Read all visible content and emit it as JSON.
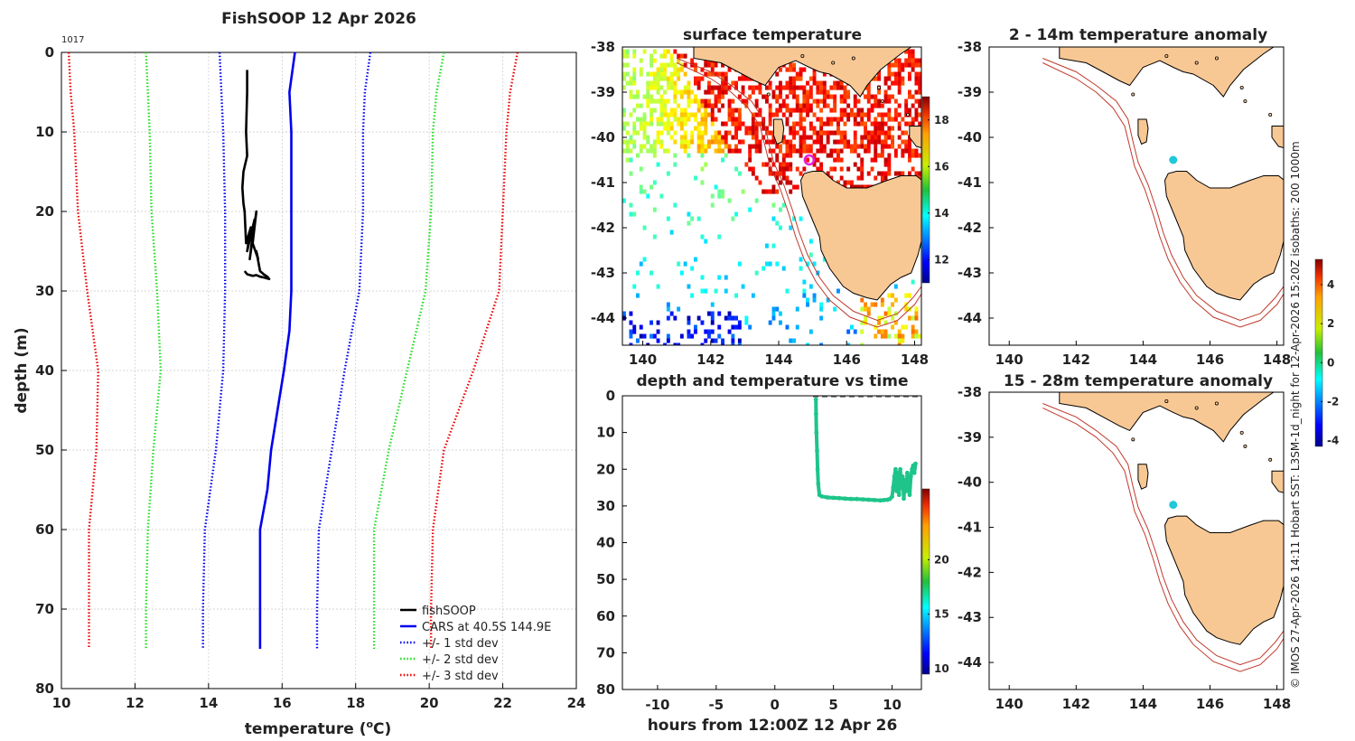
{
  "page": {
    "side_note": "© IMOS 27-Apr-2026 14:11 Hobart SST: L3SM-1d_night for 12-Apr-2026 15:20Z isobaths: 200  1000m"
  },
  "colors": {
    "fishsoop": "#000000",
    "cars": "#0000ee",
    "std1": "#0000ee",
    "std2": "#22dd22",
    "std3": "#ee0000",
    "land": "#f8c894",
    "isobath": "#c0392b",
    "track_green": "#1ec48a",
    "magenta": "#e020e0",
    "cyan": "#20c8d8"
  },
  "chart_data": [
    {
      "id": "profile",
      "type": "line",
      "title": "FishSOOP 12 Apr 2026",
      "corner_label": "1017",
      "xlabel": "temperature (",
      "xlabel_sup": "o",
      "xlabel_tail": "C)",
      "ylabel": "depth (m)",
      "xlim": [
        10,
        24
      ],
      "ylim": [
        80,
        0
      ],
      "xticks": [
        "10",
        "12",
        "14",
        "16",
        "18",
        "20",
        "22",
        "24"
      ],
      "yticks": [
        "0",
        "10",
        "20",
        "30",
        "40",
        "50",
        "60",
        "70",
        "80"
      ],
      "grid": true,
      "legend_position": "bottom-right",
      "series": [
        {
          "name": "fishSOOP",
          "style": "solid",
          "color": "#000000",
          "temps": [
            15.05,
            15.05,
            15.02,
            15.05,
            14.95,
            14.92,
            14.95,
            14.98,
            15.02,
            15.15,
            15.05,
            15.25,
            15.12,
            15.3,
            15.2,
            15.35,
            15.3,
            15.4,
            15.5,
            15.6,
            15.65,
            15.5,
            15.4,
            15.3,
            15.2,
            15.05,
            14.98
          ],
          "depths": [
            2.2,
            5,
            10,
            13,
            15,
            17,
            19,
            20,
            24,
            22,
            25,
            21,
            26,
            20,
            24,
            26,
            25,
            27.5,
            27.9,
            28.2,
            28.5,
            28.3,
            28.2,
            28.0,
            28.1,
            27.9,
            27.5
          ]
        },
        {
          "name": "CARS at 40.5S 144.9E",
          "style": "solid",
          "color": "#0000ee",
          "temps": [
            16.35,
            16.2,
            16.25,
            16.25,
            16.25,
            16.2,
            16.05,
            15.7,
            15.6,
            15.4,
            15.4
          ],
          "depths": [
            0,
            5,
            10,
            20,
            30,
            35,
            40,
            50,
            55,
            60,
            75
          ]
        },
        {
          "name": "+/- 1 std dev",
          "style": "dotted",
          "color": "#0000ee",
          "temps": [
            14.3,
            14.35,
            14.4,
            14.45,
            14.45,
            14.4,
            14.2,
            13.9,
            13.85,
            13.85
          ],
          "depths": [
            0,
            5,
            10,
            20,
            30,
            40,
            50,
            60,
            70,
            75
          ]
        },
        {
          "name": "",
          "style": "dotted",
          "color": "#0000ee",
          "temps": [
            18.4,
            18.25,
            18.2,
            18.2,
            18.1,
            17.7,
            17.35,
            17.0,
            16.95,
            16.95
          ],
          "depths": [
            0,
            5,
            10,
            20,
            30,
            40,
            50,
            60,
            70,
            75
          ]
        },
        {
          "name": "+/- 2 std dev",
          "style": "dotted",
          "color": "#22dd22",
          "temps": [
            12.3,
            12.35,
            12.4,
            12.45,
            12.6,
            12.7,
            12.5,
            12.35,
            12.3,
            12.3
          ],
          "depths": [
            0,
            5,
            10,
            20,
            30,
            40,
            50,
            60,
            70,
            75
          ]
        },
        {
          "name": "",
          "style": "dotted",
          "color": "#22dd22",
          "temps": [
            20.4,
            20.2,
            20.1,
            20.05,
            19.9,
            19.4,
            18.9,
            18.5,
            18.5,
            18.5
          ],
          "depths": [
            0,
            5,
            10,
            20,
            30,
            40,
            50,
            60,
            70,
            75
          ]
        },
        {
          "name": "+/- 3 std dev",
          "style": "dotted",
          "color": "#ee0000",
          "temps": [
            10.2,
            10.25,
            10.35,
            10.45,
            10.7,
            11.0,
            10.95,
            10.75,
            10.75,
            10.75
          ],
          "depths": [
            0,
            5,
            10,
            20,
            30,
            40,
            50,
            60,
            70,
            75
          ]
        },
        {
          "name": "",
          "style": "dotted",
          "color": "#ee0000",
          "temps": [
            22.4,
            22.2,
            22.1,
            22.0,
            21.9,
            21.2,
            20.4,
            20.1,
            20.05,
            20.05
          ],
          "depths": [
            0,
            5,
            10,
            20,
            30,
            40,
            50,
            60,
            70,
            75
          ]
        }
      ]
    },
    {
      "id": "sst_map",
      "type": "heatmap",
      "title": "surface temperature",
      "xlim": [
        139.4,
        148.2
      ],
      "ylim": [
        -44.6,
        -38
      ],
      "xticks": [
        "140",
        "142",
        "144",
        "146",
        "148"
      ],
      "yticks": [
        "-38",
        "-39",
        "-40",
        "-41",
        "-42",
        "-43",
        "-44"
      ],
      "colorbar": {
        "range": [
          11,
          19
        ],
        "ticks": [
          "12",
          "14",
          "16",
          "18"
        ]
      },
      "marker": {
        "lon": 144.9,
        "lat": -40.5,
        "symbol": "ring"
      }
    },
    {
      "id": "anom_2_14",
      "type": "heatmap",
      "title": "2 - 14m temperature anomaly",
      "xlim": [
        139.4,
        148.2
      ],
      "ylim": [
        -44.6,
        -38
      ],
      "xticks": [
        "140",
        "142",
        "144",
        "146",
        "148"
      ],
      "yticks": [
        "-38",
        "-39",
        "-40",
        "-41",
        "-42",
        "-43",
        "-44"
      ],
      "marker": {
        "lon": 144.9,
        "lat": -40.5,
        "symbol": "dot"
      }
    },
    {
      "id": "anom_15_28",
      "type": "heatmap",
      "title": "15 - 28m temperature anomaly",
      "xlim": [
        139.4,
        148.2
      ],
      "ylim": [
        -44.6,
        -38
      ],
      "xticks": [
        "140",
        "142",
        "144",
        "146",
        "148"
      ],
      "yticks": [
        "-38",
        "-39",
        "-40",
        "-41",
        "-42",
        "-43",
        "-44"
      ],
      "marker": {
        "lon": 144.9,
        "lat": -40.5,
        "symbol": "dot"
      }
    },
    {
      "id": "anom_colorbar",
      "type": "heatmap",
      "range": [
        -4.3,
        5.3
      ],
      "ticks": [
        "4",
        "2",
        "0",
        "-2",
        "-4"
      ]
    },
    {
      "id": "depth_time",
      "type": "scatter",
      "title": "depth and temperature vs time",
      "xlabel": "hours from 12:00Z 12 Apr 26",
      "xlim": [
        -13,
        12.5
      ],
      "ylim": [
        80,
        0
      ],
      "xticks": [
        "-10",
        "-5",
        "0",
        "5",
        "10"
      ],
      "yticks": [
        "0",
        "10",
        "20",
        "30",
        "40",
        "50",
        "60",
        "70",
        "80"
      ],
      "colorbar": {
        "range": [
          9.5,
          26.5
        ],
        "ticks": [
          "10",
          "15",
          "20"
        ]
      },
      "track_hours": [
        3.5,
        3.52,
        3.55,
        3.6,
        3.65,
        3.7,
        3.8,
        4,
        4.5,
        5,
        5.5,
        6,
        6.5,
        7,
        7.5,
        8,
        8.5,
        9,
        9.3,
        9.6,
        9.8,
        10,
        10.1,
        10.2,
        10.3,
        10.4,
        10.5,
        10.6,
        10.7,
        10.8,
        10.9,
        11,
        11.1,
        11.2,
        11.3,
        11.4,
        11.5,
        11.6,
        11.7,
        11.8,
        11.9,
        12.0
      ],
      "track_depths": [
        1,
        5,
        10,
        15,
        20,
        24,
        27,
        27.4,
        27.7,
        27.8,
        27.9,
        28.0,
        28.1,
        28.1,
        28.2,
        28.3,
        28.4,
        28.5,
        28.4,
        28.3,
        28.1,
        27.5,
        25,
        22,
        20,
        26,
        21,
        27,
        20,
        25,
        22,
        28,
        23,
        26,
        21,
        24,
        27,
        22,
        20,
        19,
        21,
        18.5
      ]
    }
  ]
}
